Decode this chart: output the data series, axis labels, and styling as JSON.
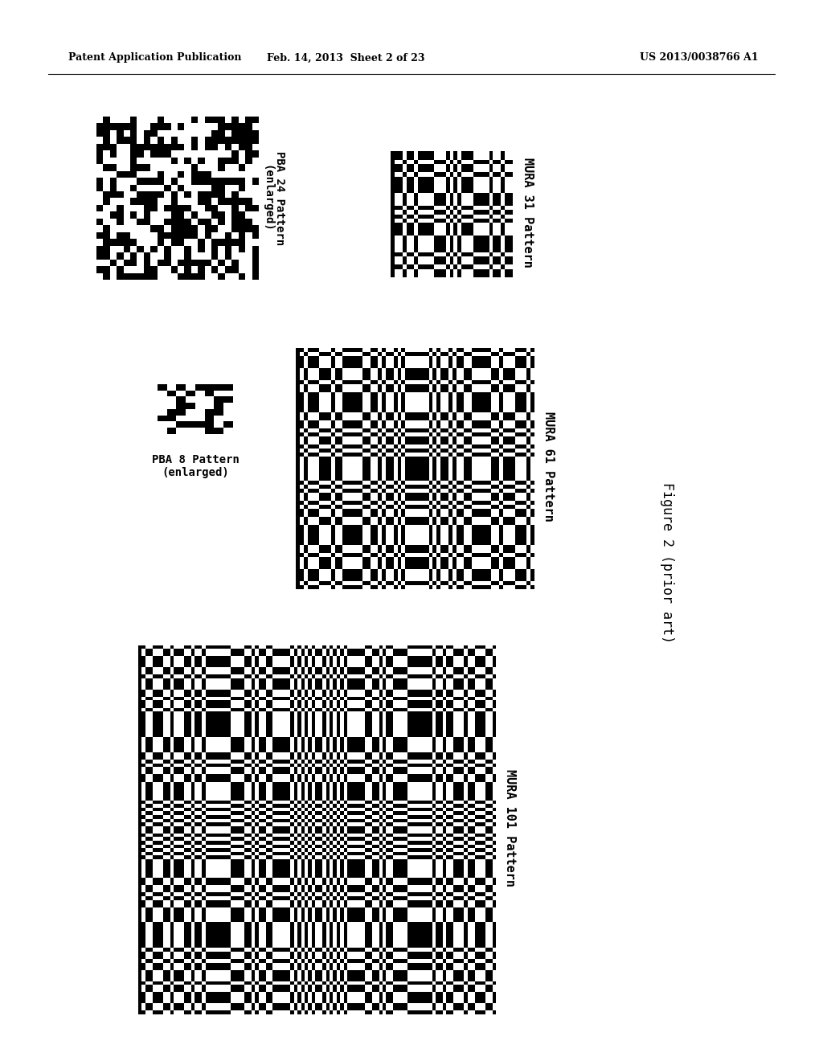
{
  "header_left": "Patent Application Publication",
  "header_mid": "Feb. 14, 2013  Sheet 2 of 23",
  "header_right": "US 2013/0038766 A1",
  "figure_label": "Figure 2 (prior art)",
  "bg_color": "#ffffff",
  "text_color": "#000000",
  "pba24_label": "PBA 24 Pattern\n(enlarged)",
  "pba8_label": "PBA 8 Pattern\n(enlarged)",
  "mura31_label": "MURA 31 Pattern",
  "mura61_label": "MURA 61 Pattern",
  "mura101_label": "MURA 101 Pattern",
  "pba24_size": 24,
  "pba8_size": 8,
  "mura31_size": 31,
  "mura61_size": 61,
  "mura101_size": 101,
  "seed_pba24": 42,
  "seed_pba8": 7
}
